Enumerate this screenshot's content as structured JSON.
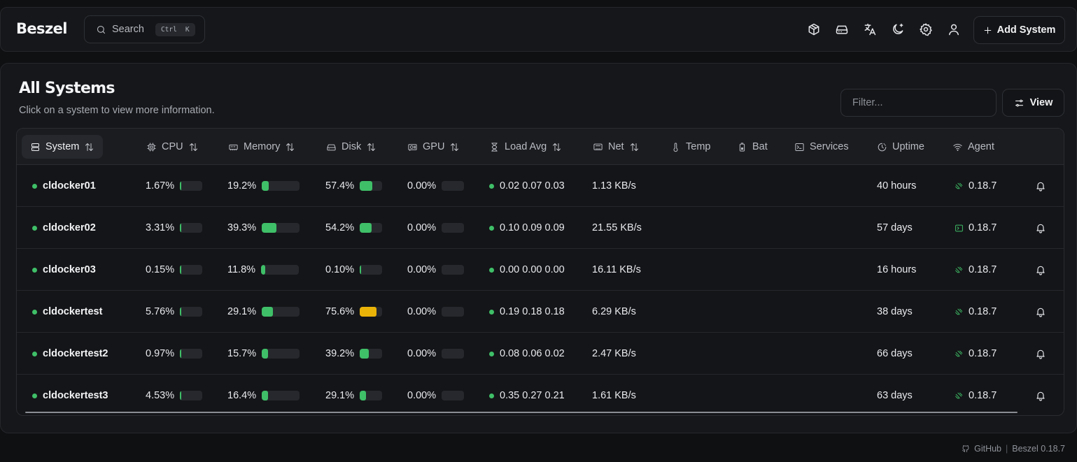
{
  "app": {
    "name": "Beszel"
  },
  "search": {
    "label": "Search",
    "kbd_mod": "Ctrl",
    "kbd_key": "K"
  },
  "toolbar": {
    "icons": [
      "containers-icon",
      "drive-icon",
      "language-icon",
      "theme-toggle-icon",
      "settings-icon",
      "user-icon"
    ],
    "add_system_label": "Add System"
  },
  "page": {
    "title": "All Systems",
    "subtitle": "Click on a system to view more information.",
    "filter_placeholder": "Filter...",
    "view_label": "View"
  },
  "table": {
    "columns": [
      "System",
      "CPU",
      "Memory",
      "Disk",
      "GPU",
      "Load Avg",
      "Net",
      "Temp",
      "Bat",
      "Services",
      "Uptime",
      "Agent"
    ],
    "rows": [
      {
        "name": "cldocker01",
        "cpu": "1.67%",
        "cpu_pct": 1.67,
        "memory": "19.2%",
        "memory_pct": 19.2,
        "disk": "57.4%",
        "disk_pct": 57.4,
        "gpu": "0.00%",
        "gpu_pct": 0,
        "load": "0.02 0.07 0.03",
        "net": "1.13 KB/s",
        "uptime": "40 hours",
        "agent": "0.18.7",
        "agent_icon": "websocket-icon"
      },
      {
        "name": "cldocker02",
        "cpu": "3.31%",
        "cpu_pct": 3.31,
        "memory": "39.3%",
        "memory_pct": 39.3,
        "disk": "54.2%",
        "disk_pct": 54.2,
        "gpu": "0.00%",
        "gpu_pct": 0,
        "load": "0.10 0.09 0.09",
        "net": "21.55 KB/s",
        "uptime": "57 days",
        "agent": "0.18.7",
        "agent_icon": "terminal-icon"
      },
      {
        "name": "cldocker03",
        "cpu": "0.15%",
        "cpu_pct": 0.15,
        "memory": "11.8%",
        "memory_pct": 11.8,
        "disk": "0.10%",
        "disk_pct": 0.1,
        "gpu": "0.00%",
        "gpu_pct": 0,
        "load": "0.00 0.00 0.00",
        "net": "16.11 KB/s",
        "uptime": "16 hours",
        "agent": "0.18.7",
        "agent_icon": "websocket-icon"
      },
      {
        "name": "cldockertest",
        "cpu": "5.76%",
        "cpu_pct": 5.76,
        "memory": "29.1%",
        "memory_pct": 29.1,
        "disk": "75.6%",
        "disk_pct": 75.6,
        "gpu": "0.00%",
        "gpu_pct": 0,
        "load": "0.19 0.18 0.18",
        "net": "6.29 KB/s",
        "uptime": "38 days",
        "agent": "0.18.7",
        "agent_icon": "websocket-icon"
      },
      {
        "name": "cldockertest2",
        "cpu": "0.97%",
        "cpu_pct": 0.97,
        "memory": "15.7%",
        "memory_pct": 15.7,
        "disk": "39.2%",
        "disk_pct": 39.2,
        "gpu": "0.00%",
        "gpu_pct": 0,
        "load": "0.08 0.06 0.02",
        "net": "2.47 KB/s",
        "uptime": "66 days",
        "agent": "0.18.7",
        "agent_icon": "websocket-icon"
      },
      {
        "name": "cldockertest3",
        "cpu": "4.53%",
        "cpu_pct": 4.53,
        "memory": "16.4%",
        "memory_pct": 16.4,
        "disk": "29.1%",
        "disk_pct": 29.1,
        "gpu": "0.00%",
        "gpu_pct": 0,
        "load": "0.35 0.27 0.21",
        "net": "1.61 KB/s",
        "uptime": "63 days",
        "agent": "0.18.7",
        "agent_icon": "websocket-icon"
      }
    ]
  },
  "colors": {
    "ok": "#3fbf68",
    "warn": "#eab308",
    "background": "#0f1012",
    "surface": "#16171a"
  },
  "footer": {
    "github": "GitHub",
    "version": "Beszel 0.18.7"
  }
}
